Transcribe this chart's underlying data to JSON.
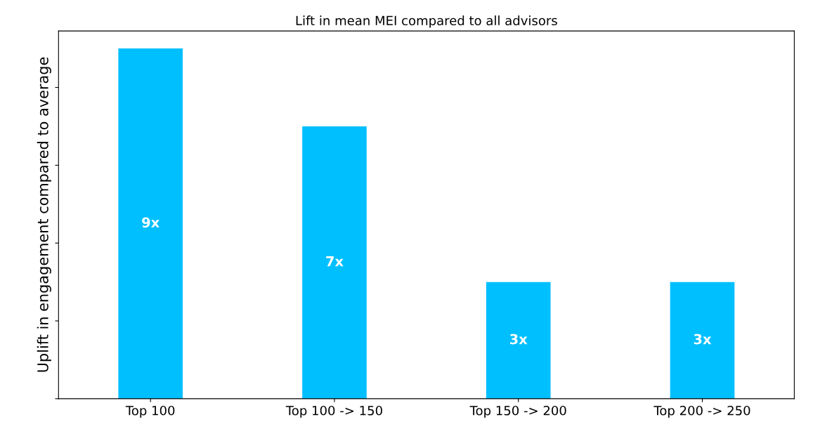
{
  "chart_data": {
    "type": "bar",
    "title": "Lift in mean MEI compared to all advisors",
    "ylabel": "Uplift in engagement compared to average",
    "categories": [
      "Top 100",
      "Top 100 -> 150",
      "Top 150 -> 200",
      "Top 200 -> 250"
    ],
    "values": [
      9,
      7,
      3,
      3
    ],
    "value_labels": [
      "9x",
      "7x",
      "3x",
      "3x"
    ],
    "color": "#00bfff",
    "ylim": [
      0,
      9.45
    ],
    "yticks": [
      {
        "value": 0,
        "label": null
      },
      {
        "value": 2,
        "label": null
      },
      {
        "value": 4,
        "label": null
      },
      {
        "value": 6,
        "label": null
      },
      {
        "value": 8,
        "label": null
      }
    ],
    "tick_labels": "x",
    "grid": false,
    "legend": false
  }
}
